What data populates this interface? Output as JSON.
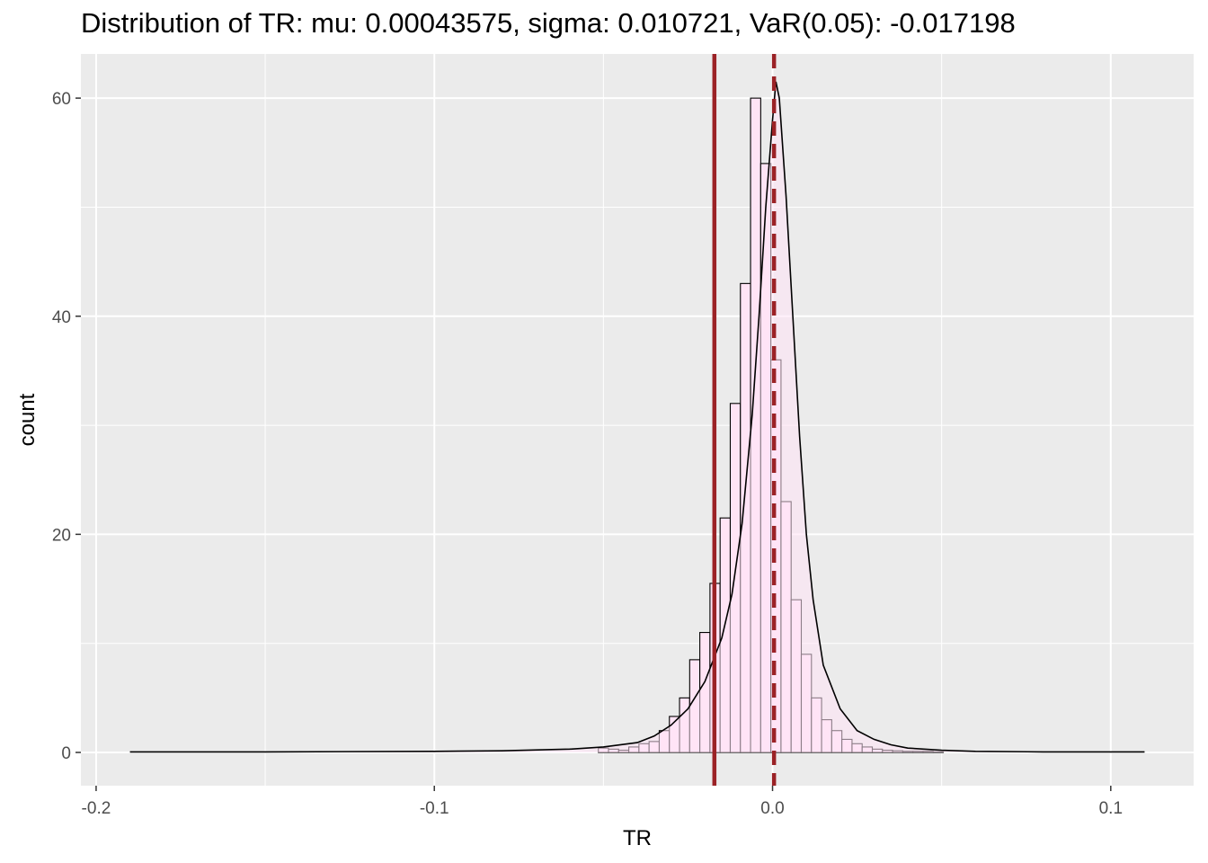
{
  "chart_data": {
    "type": "histogram",
    "title": "Distribution of TR: mu: 0.00043575, sigma: 0.010721, VaR(0.05): -0.017198",
    "xlabel": "TR",
    "ylabel": "count",
    "xlim": [
      -0.2045,
      0.1245
    ],
    "ylim": [
      -3.05,
      64.05
    ],
    "x_ticks": [
      -0.2,
      -0.1,
      0.0,
      0.1
    ],
    "x_tick_labels": [
      "-0.2",
      "-0.1",
      "0.0",
      "0.1"
    ],
    "y_ticks": [
      0,
      20,
      40,
      60
    ],
    "y_tick_labels": [
      "0",
      "20",
      "40",
      "60"
    ],
    "grid": true,
    "legend": "none",
    "bin_width": 0.003,
    "bin_centers": [
      -0.05,
      -0.047,
      -0.044,
      -0.041,
      -0.038,
      -0.035,
      -0.032,
      -0.029,
      -0.026,
      -0.023,
      -0.02,
      -0.017,
      -0.014,
      -0.011,
      -0.008,
      -0.005,
      -0.002,
      0.001,
      0.004,
      0.007,
      0.01,
      0.013,
      0.016,
      0.019,
      0.022,
      0.025,
      0.028,
      0.031,
      0.034,
      0.037,
      0.04,
      0.043,
      0.046,
      0.049
    ],
    "counts": [
      0.4,
      0.3,
      0.2,
      0.5,
      0.8,
      1,
      2,
      3.3,
      5,
      8.5,
      11,
      15.5,
      21.5,
      32,
      43,
      60,
      54,
      36,
      23,
      14,
      9,
      5,
      3,
      2,
      1.2,
      0.8,
      0.5,
      0.3,
      0.2,
      0.15,
      0.1,
      0.1,
      0.1,
      0.05
    ],
    "density_curve": {
      "x": [
        -0.19,
        -0.15,
        -0.1,
        -0.08,
        -0.06,
        -0.05,
        -0.04,
        -0.035,
        -0.03,
        -0.025,
        -0.02,
        -0.015,
        -0.012,
        -0.009,
        -0.006,
        -0.004,
        -0.002,
        0,
        0.001,
        0.002,
        0.004,
        0.006,
        0.008,
        0.01,
        0.012,
        0.015,
        0.02,
        0.025,
        0.03,
        0.035,
        0.04,
        0.05,
        0.06,
        0.08,
        0.1,
        0.11
      ],
      "y": [
        0.05,
        0.05,
        0.1,
        0.15,
        0.3,
        0.5,
        0.9,
        1.5,
        2.5,
        4,
        6.5,
        10.5,
        14.5,
        21,
        31,
        40,
        50,
        58,
        61.5,
        60,
        51,
        40,
        29,
        20,
        14,
        8,
        4,
        2,
        1.2,
        0.7,
        0.4,
        0.2,
        0.1,
        0.05,
        0.05,
        0.05
      ]
    },
    "fill_color": "#ffe4f5",
    "bar_outline_color": "#000000",
    "vlines": [
      {
        "x": -0.017198,
        "linetype": "solid",
        "color": "#9b2226"
      },
      {
        "x": 0.00043575,
        "linetype": "dashed",
        "color": "#9b2226"
      }
    ],
    "panel_background": "#ebebeb",
    "gridline_color": "#ffffff"
  }
}
